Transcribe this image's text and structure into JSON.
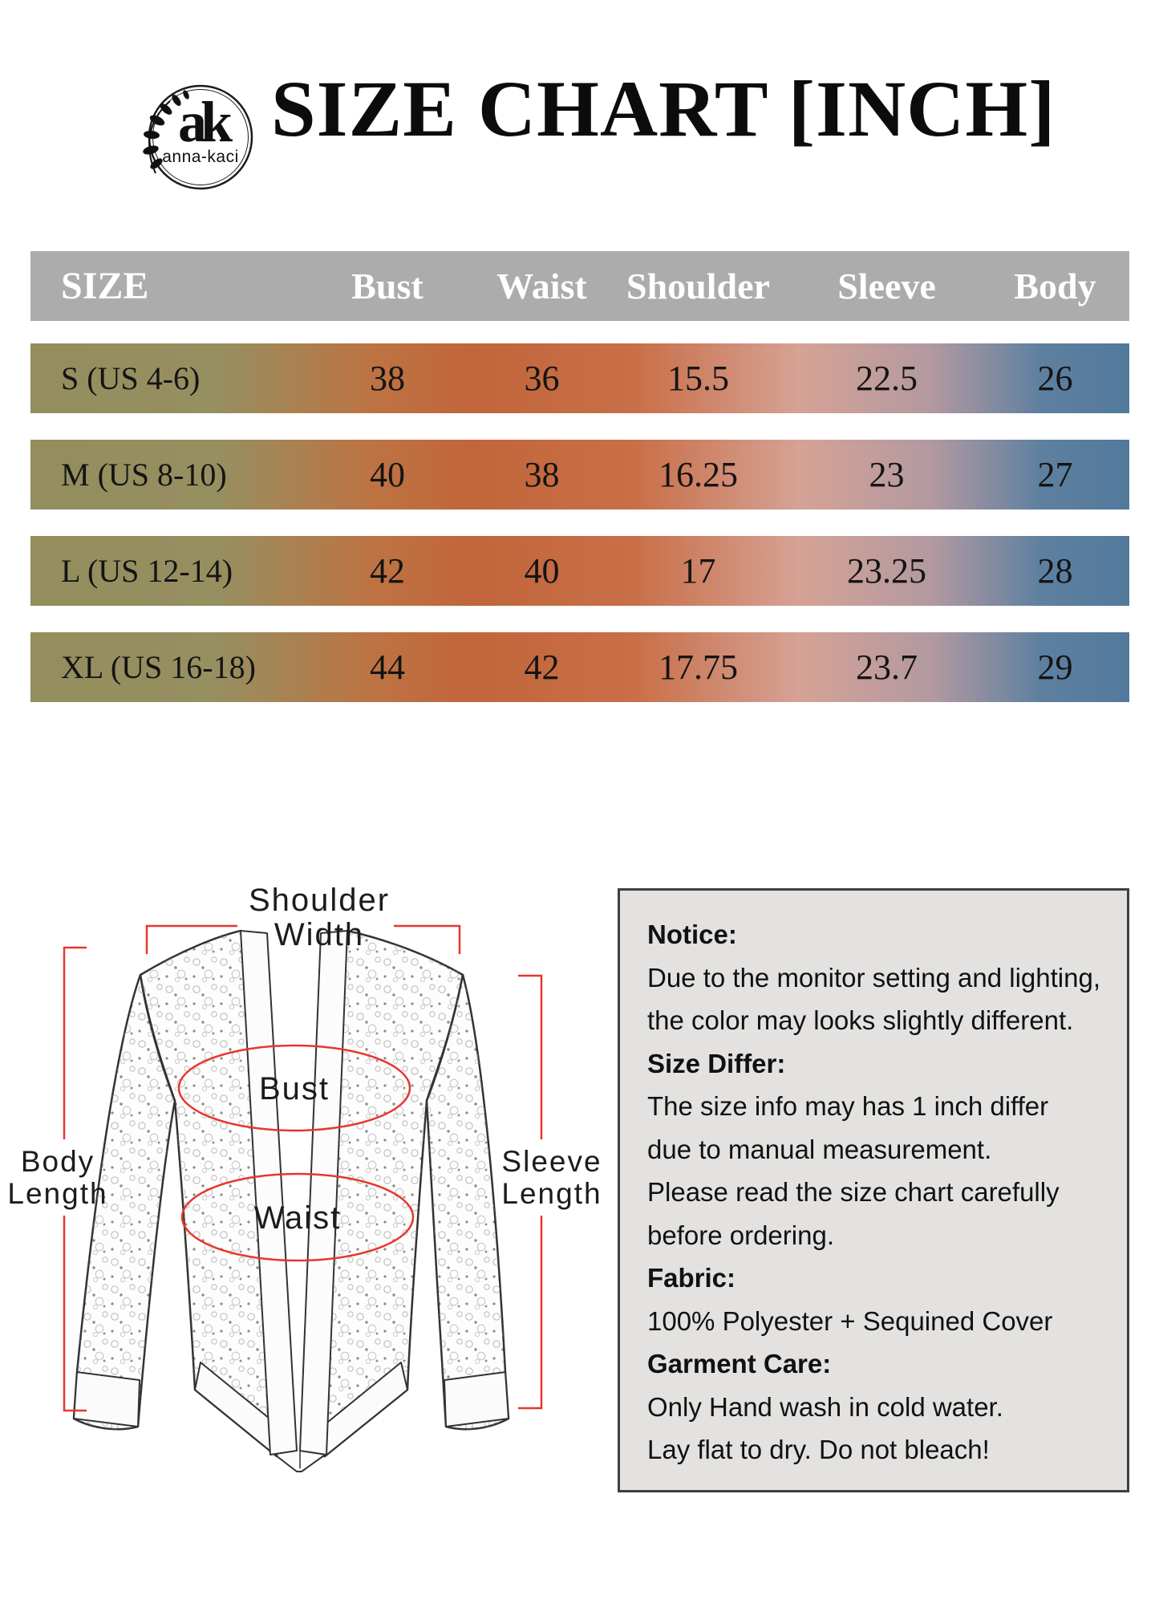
{
  "logo": {
    "monogram": "ak",
    "brand": "anna-kaci"
  },
  "title": "SIZE CHART [INCH]",
  "table": {
    "headers": [
      "SIZE",
      "Bust",
      "Waist",
      "Shoulder",
      "Sleeve",
      "Body"
    ],
    "rows": [
      {
        "size": "S (US 4-6)",
        "values": [
          "38",
          "36",
          "15.5",
          "22.5",
          "26"
        ]
      },
      {
        "size": "M (US 8-10)",
        "values": [
          "40",
          "38",
          "16.25",
          "23",
          "27"
        ]
      },
      {
        "size": "L (US 12-14)",
        "values": [
          "42",
          "40",
          "17",
          "23.25",
          "28"
        ]
      },
      {
        "size": "XL (US 16-18)",
        "values": [
          "44",
          "42",
          "17.75",
          "23.7",
          "29"
        ]
      }
    ]
  },
  "diagram": {
    "shoulder_line1": "Shoulder",
    "shoulder_line2": "Width",
    "body_line1": "Body",
    "body_line2": "Length",
    "sleeve_line1": "Sleeve",
    "sleeve_line2": "Length",
    "bust_label": "Bust",
    "waist_label": "Waist"
  },
  "notice": {
    "lines": [
      {
        "text": "Notice:",
        "bold": true
      },
      {
        "text": "Due to the monitor setting and lighting,",
        "bold": false
      },
      {
        "text": "the color may looks slightly different.",
        "bold": false
      },
      {
        "text": "Size Differ:",
        "bold": true
      },
      {
        "text": "The size info may has 1 inch differ",
        "bold": false
      },
      {
        "text": "due to manual measurement.",
        "bold": false
      },
      {
        "text": "Please read the size chart carefully",
        "bold": false
      },
      {
        "text": "before ordering.",
        "bold": false
      },
      {
        "text": "Fabric:",
        "bold": true
      },
      {
        "text": "100% Polyester + Sequined Cover",
        "bold": false
      },
      {
        "text": "Garment Care:",
        "bold": true
      },
      {
        "text": "Only Hand wash in cold water.",
        "bold": false
      },
      {
        "text": "Lay flat to dry. Do not bleach!",
        "bold": false
      }
    ]
  },
  "colors": {
    "header_bg": "#ACACAC",
    "row_gradient_left": "#948D5E",
    "row_gradient_orange": "#C1663A",
    "row_gradient_pink": "#D5A295",
    "row_gradient_right": "#52799C",
    "annotation_red": "#E8372C",
    "notice_bg": "#E4E2E0"
  }
}
